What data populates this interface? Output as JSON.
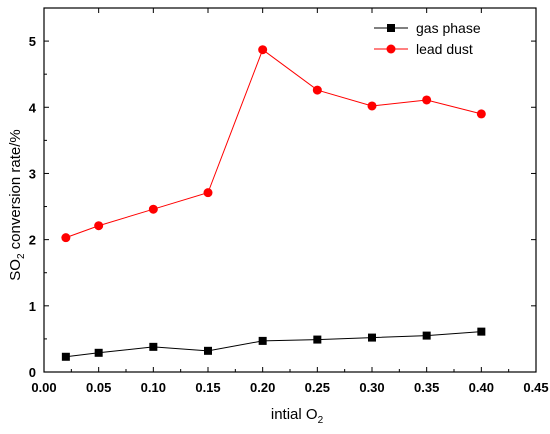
{
  "chart_data": {
    "type": "line",
    "title": "",
    "xlabel": {
      "main": "intial O",
      "sub": "2"
    },
    "ylabel": {
      "main1": "SO",
      "sub": "2",
      "main2": " conversion rate/%"
    },
    "xlim": [
      0.0,
      0.45
    ],
    "ylim": [
      0,
      5.5
    ],
    "xticks": [
      "0.00",
      "0.05",
      "0.10",
      "0.15",
      "0.20",
      "0.25",
      "0.30",
      "0.35",
      "0.40",
      "0.45"
    ],
    "yticks": [
      "0",
      "1",
      "2",
      "3",
      "4",
      "5"
    ],
    "x": [
      0.02,
      0.05,
      0.1,
      0.15,
      0.2,
      0.25,
      0.3,
      0.35,
      0.4
    ],
    "series": [
      {
        "name": "gas phase",
        "color": "#000000",
        "marker": "square",
        "values": [
          0.23,
          0.29,
          0.38,
          0.32,
          0.47,
          0.49,
          0.52,
          0.55,
          0.61
        ]
      },
      {
        "name": "lead dust",
        "color": "#ff0000",
        "marker": "circle",
        "values": [
          2.03,
          2.21,
          2.46,
          2.71,
          4.87,
          4.26,
          4.02,
          4.11,
          3.9
        ]
      }
    ],
    "grid": false,
    "legend_position": "top-right"
  }
}
